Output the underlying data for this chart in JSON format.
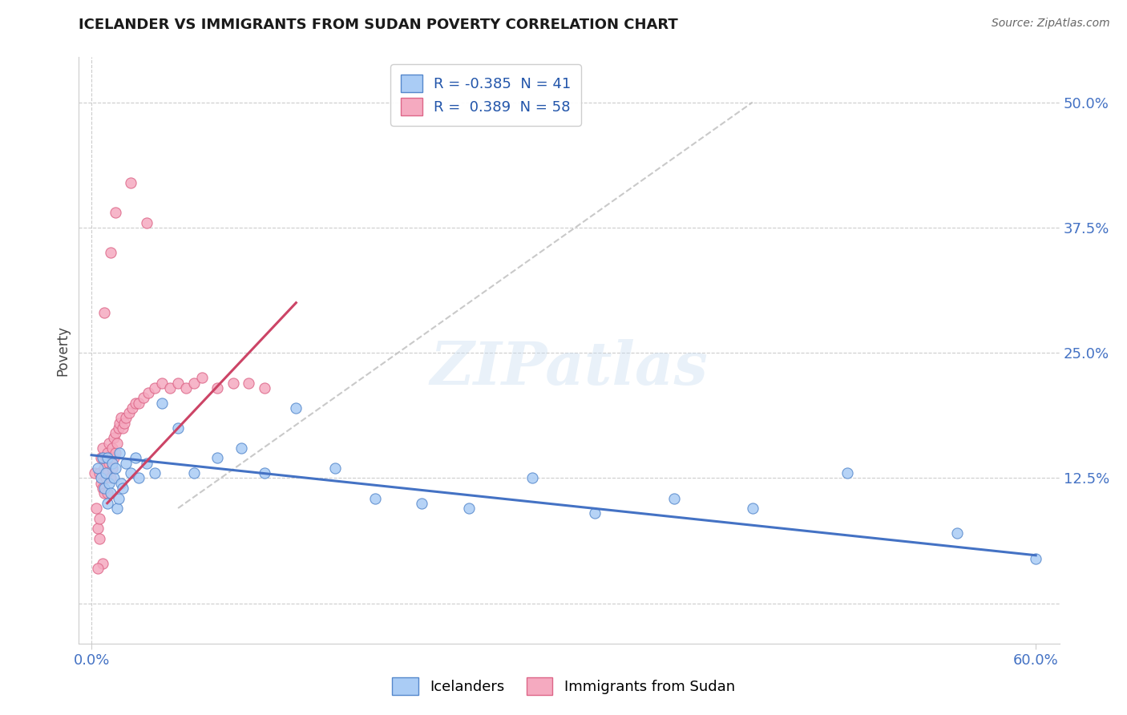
{
  "title": "ICELANDER VS IMMIGRANTS FROM SUDAN POVERTY CORRELATION CHART",
  "source": "Source: ZipAtlas.com",
  "ylabel_label": "Poverty",
  "xlim_min": -0.008,
  "xlim_max": 0.615,
  "ylim_min": -0.04,
  "ylim_max": 0.545,
  "ytick_vals": [
    0.0,
    0.125,
    0.25,
    0.375,
    0.5
  ],
  "ytick_labels": [
    "",
    "12.5%",
    "25.0%",
    "37.5%",
    "50.0%"
  ],
  "xtick_vals": [
    0.0,
    0.6
  ],
  "xtick_labels": [
    "0.0%",
    "60.0%"
  ],
  "watermark_text": "ZIPatlas",
  "icelander_face_color": "#aaccf5",
  "icelander_edge_color": "#5588cc",
  "sudan_face_color": "#f5aac0",
  "sudan_edge_color": "#dd6688",
  "blue_line_color": "#4472c4",
  "pink_line_color": "#cc4466",
  "dashed_line_color": "#c0c0c0",
  "icelander_R": -0.385,
  "icelander_N": 41,
  "sudan_R": 0.389,
  "sudan_N": 58,
  "icelanders_x": [
    0.004,
    0.006,
    0.007,
    0.008,
    0.009,
    0.01,
    0.01,
    0.011,
    0.012,
    0.013,
    0.014,
    0.015,
    0.016,
    0.017,
    0.018,
    0.019,
    0.02,
    0.022,
    0.025,
    0.028,
    0.03,
    0.035,
    0.04,
    0.045,
    0.055,
    0.065,
    0.08,
    0.095,
    0.11,
    0.13,
    0.155,
    0.18,
    0.21,
    0.24,
    0.28,
    0.32,
    0.37,
    0.42,
    0.48,
    0.55,
    0.6
  ],
  "icelanders_y": [
    0.135,
    0.125,
    0.145,
    0.115,
    0.13,
    0.1,
    0.145,
    0.12,
    0.11,
    0.14,
    0.125,
    0.135,
    0.095,
    0.105,
    0.15,
    0.12,
    0.115,
    0.14,
    0.13,
    0.145,
    0.125,
    0.14,
    0.13,
    0.2,
    0.175,
    0.13,
    0.145,
    0.155,
    0.13,
    0.195,
    0.135,
    0.105,
    0.1,
    0.095,
    0.125,
    0.09,
    0.105,
    0.095,
    0.13,
    0.07,
    0.045
  ],
  "sudan_x": [
    0.002,
    0.003,
    0.004,
    0.005,
    0.005,
    0.006,
    0.006,
    0.007,
    0.007,
    0.008,
    0.008,
    0.009,
    0.009,
    0.01,
    0.01,
    0.01,
    0.011,
    0.011,
    0.012,
    0.012,
    0.013,
    0.013,
    0.014,
    0.014,
    0.015,
    0.015,
    0.016,
    0.017,
    0.018,
    0.019,
    0.02,
    0.021,
    0.022,
    0.024,
    0.026,
    0.028,
    0.03,
    0.033,
    0.036,
    0.04,
    0.045,
    0.05,
    0.055,
    0.06,
    0.065,
    0.07,
    0.08,
    0.09,
    0.1,
    0.11,
    0.025,
    0.035,
    0.015,
    0.008,
    0.012,
    0.007,
    0.005,
    0.004
  ],
  "sudan_y": [
    0.13,
    0.095,
    0.075,
    0.085,
    0.13,
    0.12,
    0.145,
    0.115,
    0.155,
    0.11,
    0.135,
    0.125,
    0.145,
    0.11,
    0.13,
    0.15,
    0.14,
    0.16,
    0.125,
    0.145,
    0.135,
    0.155,
    0.145,
    0.165,
    0.15,
    0.17,
    0.16,
    0.175,
    0.18,
    0.185,
    0.175,
    0.18,
    0.185,
    0.19,
    0.195,
    0.2,
    0.2,
    0.205,
    0.21,
    0.215,
    0.22,
    0.215,
    0.22,
    0.215,
    0.22,
    0.225,
    0.215,
    0.22,
    0.22,
    0.215,
    0.42,
    0.38,
    0.39,
    0.29,
    0.35,
    0.04,
    0.065,
    0.035
  ],
  "dashed_line_x": [
    0.055,
    0.42
  ],
  "dashed_line_y": [
    0.095,
    0.5
  ],
  "grid_line_color": "#cccccc",
  "axis_label_color": "#4472c4",
  "title_color": "#1a1a1a",
  "background_color": "#ffffff"
}
